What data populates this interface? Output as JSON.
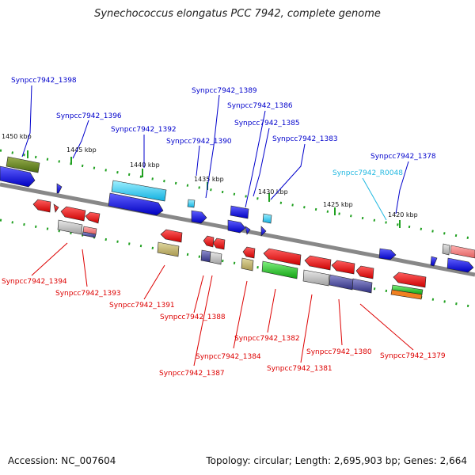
{
  "title": "Synechococcus elongatus PCC 7942, complete genome",
  "footer": {
    "accession": "Accession: NC_007604",
    "summary": "Topology: circular; Length: 2,695,903 bp; Genes: 2,664"
  },
  "ticks": [
    "1450 kbp",
    "1445 kbp",
    "1440 kbp",
    "1435 kbp",
    "1430 kbp",
    "1425 kbp",
    "1420 kbp"
  ],
  "labels_upper": [
    "Synpcc7942_1398",
    "Synpcc7942_1396",
    "Synpcc7942_1392",
    "Synpcc7942_1390",
    "Synpcc7942_1389",
    "Synpcc7942_1386",
    "Synpcc7942_1385",
    "Synpcc7942_1383",
    "Synpcc7942_R0048",
    "Synpcc7942_1378"
  ],
  "labels_lower": [
    "Synpcc7942_1394",
    "Synpcc7942_1393",
    "Synpcc7942_1391",
    "Synpcc7942_1388",
    "Synpcc7942_1387",
    "Synpcc7942_1384",
    "Synpcc7942_1382",
    "Synpcc7942_1381",
    "Synpcc7942_1380",
    "Synpcc7942_1379"
  ],
  "colors": {
    "forward": "#1010e0",
    "reverse": "#ee1010",
    "cyan": "#20c8e8",
    "olive": "#5a7a20",
    "khaki": "#c8b870",
    "grey": "#b8b8b8",
    "slate": "#5050a0",
    "green": "#20c020",
    "orange": "#f08020",
    "salmon": "#f08080",
    "backbone": "#888888",
    "tick": "#20a020",
    "label_forward": "#0000cc",
    "label_reverse": "#dd0000",
    "label_rna": "#20b8e0"
  }
}
